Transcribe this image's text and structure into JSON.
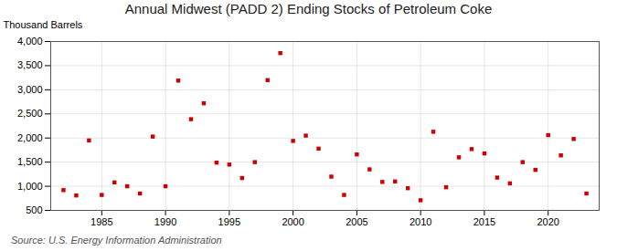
{
  "chart_data": {
    "type": "scatter",
    "title": "Annual Midwest (PADD 2) Ending Stocks of Petroleum Coke",
    "ylabel": "Thousand Barrels",
    "source": "Source: U.S. Energy Information Administration",
    "x": [
      1982,
      1983,
      1984,
      1985,
      1986,
      1987,
      1988,
      1989,
      1990,
      1991,
      1992,
      1993,
      1994,
      1995,
      1996,
      1997,
      1998,
      1999,
      2000,
      2001,
      2002,
      2003,
      2004,
      2005,
      2006,
      2007,
      2008,
      2009,
      2010,
      2011,
      2012,
      2013,
      2014,
      2015,
      2016,
      2017,
      2018,
      2019,
      2020,
      2021,
      2022,
      2023
    ],
    "values": [
      920,
      810,
      1950,
      820,
      1080,
      1000,
      850,
      2030,
      1000,
      3190,
      2390,
      2720,
      1490,
      1450,
      1170,
      1500,
      3200,
      3760,
      1940,
      2050,
      1780,
      1200,
      820,
      1660,
      1350,
      1090,
      1100,
      960,
      710,
      2130,
      980,
      1600,
      1770,
      1680,
      1180,
      1060,
      1500,
      1340,
      2060,
      1640,
      1980,
      850
    ],
    "color": "#cc0000",
    "marker": "square",
    "xlim": [
      1981,
      2024
    ],
    "xticks": [
      1985,
      1990,
      1995,
      2000,
      2005,
      2010,
      2015,
      2020
    ],
    "ylim": [
      500,
      4000
    ],
    "yticks": [
      500,
      {
        "value": 1000,
        "label": "1,000"
      },
      {
        "value": 1500,
        "label": "1,500"
      },
      {
        "value": 2000,
        "label": "2,000"
      },
      {
        "value": 2500,
        "label": "2,500"
      },
      {
        "value": 3000,
        "label": "3,000"
      },
      {
        "value": 3500,
        "label": "3,500"
      },
      {
        "value": 4000,
        "label": "4,000"
      }
    ],
    "grid": true
  }
}
